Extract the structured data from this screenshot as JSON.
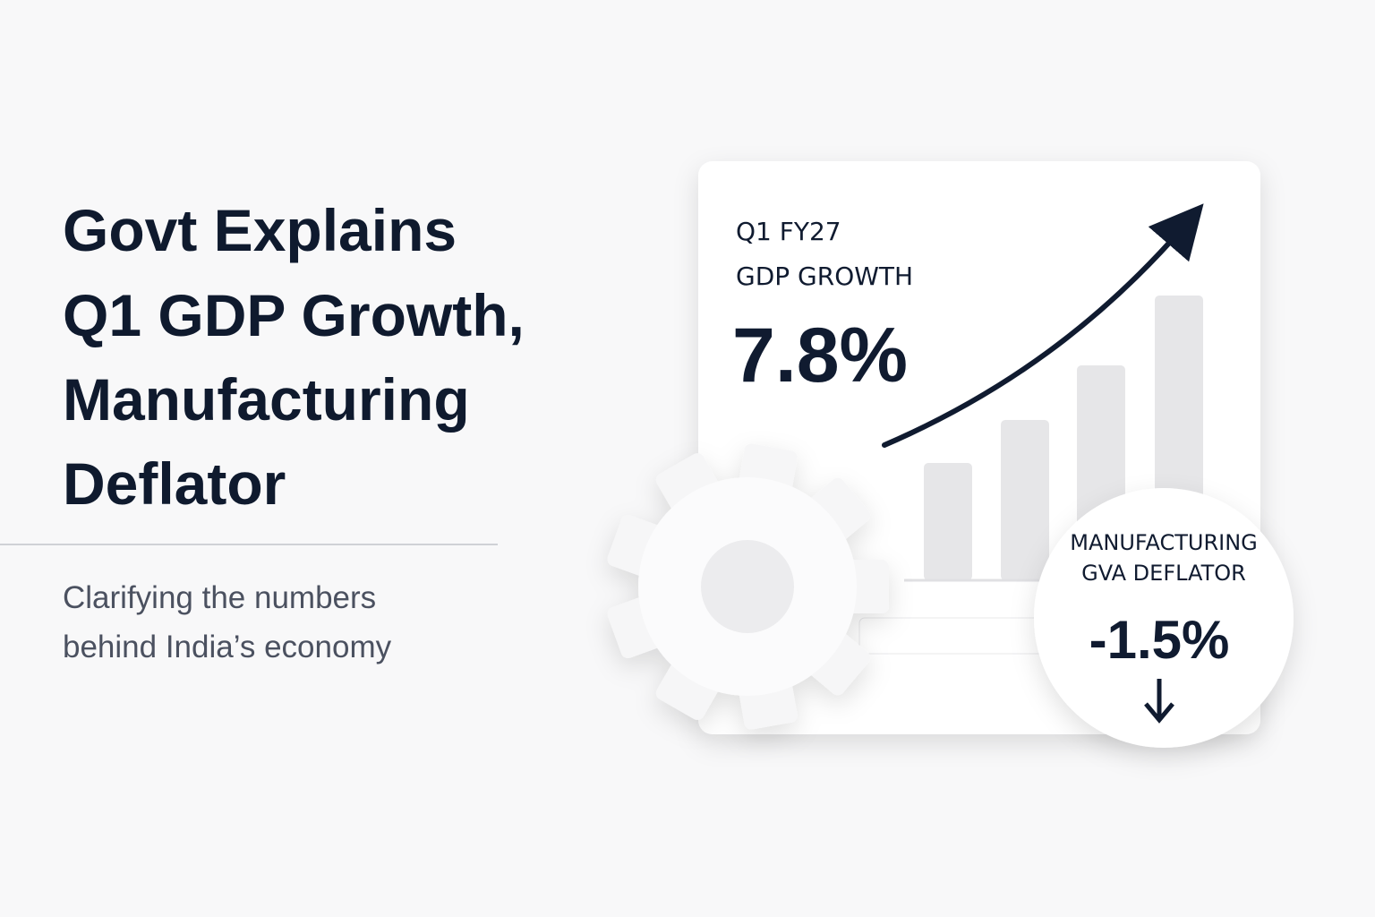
{
  "headline": {
    "title_lines": [
      "Govt Explains",
      "Q1 GDP Growth,",
      "Manufacturing",
      "Deflator"
    ],
    "subtitle_lines": [
      "Clarifying the numbers",
      "behind India’s economy"
    ]
  },
  "card": {
    "period": "Q1 FY27",
    "label": "GDP GROWTH",
    "value": "7.8%"
  },
  "badge": {
    "label_lines": [
      "MANUFACTURING",
      "GVA DEFLATOR"
    ],
    "value": "-1.5%"
  }
}
